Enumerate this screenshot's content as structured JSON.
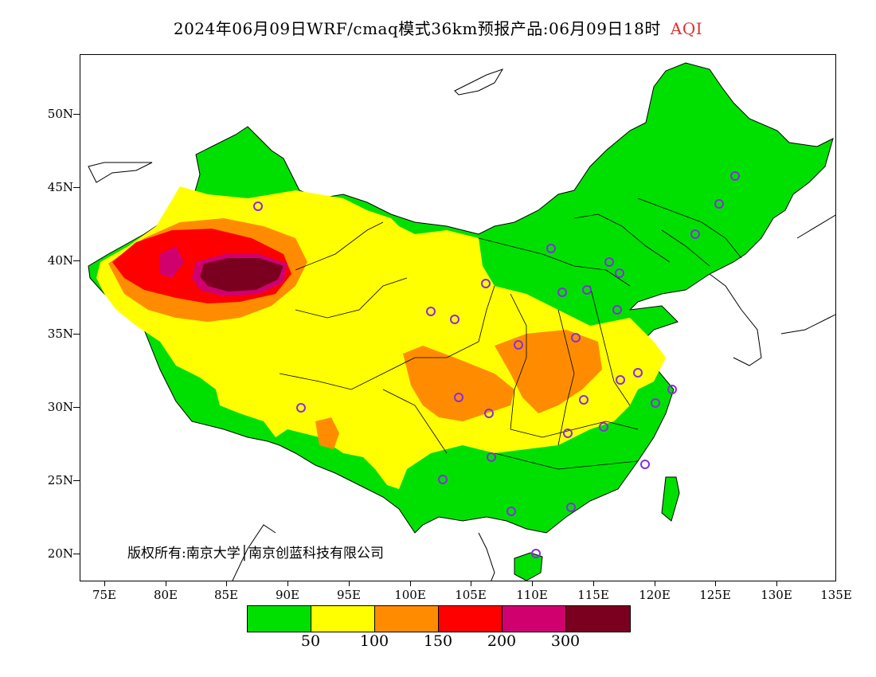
{
  "title": {
    "main": "2024年06月09日WRF/cmaq模式36km预报产品:06月09日18时",
    "product": "AQI"
  },
  "axes": {
    "y_labels": [
      "50N",
      "45N",
      "40N",
      "35N",
      "30N",
      "25N",
      "20N"
    ],
    "x_labels": [
      "75E",
      "80E",
      "85E",
      "90E",
      "95E",
      "100E",
      "105E",
      "110E",
      "115E",
      "120E",
      "125E",
      "130E",
      "135E"
    ]
  },
  "copyright": "版权所有:南京大学│南京创蓝科技有限公司",
  "legend": {
    "colors": [
      "#00e000",
      "#ffff00",
      "#ff8c00",
      "#ff0000",
      "#d0006f",
      "#7b0020"
    ],
    "labels": [
      "50",
      "100",
      "150",
      "200",
      "300"
    ]
  },
  "map": {
    "land_color": "#00e000",
    "ocean_color": "#ffffff",
    "station_marker_color": "#8a2be2"
  }
}
